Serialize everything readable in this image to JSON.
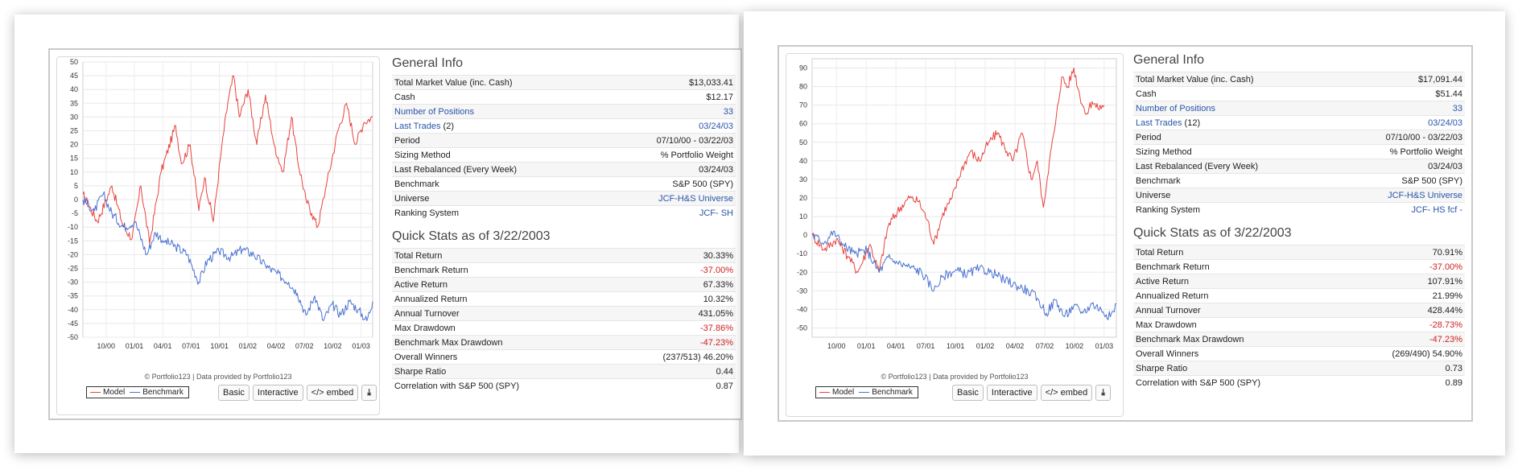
{
  "colors": {
    "model": "#e8413c",
    "benchmark": "#4a72d1",
    "link": "#2a55a8",
    "negative": "#cc1f1f"
  },
  "screens": [
    {
      "legend": {
        "model": "Model",
        "benchmark": "Benchmark"
      },
      "credit": "© Portfolio123 | Data provided by Portfolio123",
      "buttons": {
        "basic": "Basic",
        "interactive": "Interactive",
        "embed": "</> embed",
        "download_icon": "download-icon"
      },
      "general_info": {
        "title": "General Info",
        "rows": [
          {
            "label": "Total Market Value (inc. Cash)",
            "value": "$13,033.41"
          },
          {
            "label": "Cash",
            "value": "$12.17"
          },
          {
            "label": "Number of Positions",
            "value": "33",
            "link": true
          },
          {
            "label": "Last Trades",
            "label_suffix": " (2)",
            "value": "03/24/03",
            "link": true
          },
          {
            "label": "Period",
            "value": "07/10/00 - 03/22/03"
          },
          {
            "label": "Sizing Method",
            "value": "% Portfolio Weight"
          },
          {
            "label": "Last Rebalanced (Every Week)",
            "value": "03/24/03"
          },
          {
            "label": "Benchmark",
            "value": "S&P 500 (SPY)"
          },
          {
            "label": "Universe",
            "value": "JCF-H&S Universe",
            "value_link": true
          },
          {
            "label": "Ranking System",
            "value": "JCF- SH",
            "value_link": true
          }
        ]
      },
      "quick_stats": {
        "title": "Quick Stats as of 3/22/2003",
        "rows": [
          {
            "label": "Total Return",
            "value": "30.33%"
          },
          {
            "label": "Benchmark Return",
            "value": "-37.00%",
            "negative": true
          },
          {
            "label": "Active Return",
            "value": "67.33%"
          },
          {
            "label": "Annualized Return",
            "value": "10.32%"
          },
          {
            "label": "Annual Turnover",
            "value": "431.05%"
          },
          {
            "label": "Max Drawdown",
            "value": "-37.86%",
            "negative": true
          },
          {
            "label": "Benchmark Max Drawdown",
            "value": "-47.23%",
            "negative": true
          },
          {
            "label": "Overall Winners",
            "value": "(237/513) 46.20%"
          },
          {
            "label": "Sharpe Ratio",
            "value": "0.44"
          },
          {
            "label": "Correlation with S&P 500 (SPY)",
            "value": "0.87"
          }
        ]
      },
      "chart_data": {
        "type": "line",
        "ylim": [
          -50,
          50
        ],
        "yticks": [
          50,
          45,
          40,
          35,
          30,
          25,
          20,
          15,
          10,
          5,
          0,
          -5,
          -10,
          -15,
          -20,
          -25,
          -30,
          -35,
          -40,
          -45,
          -50
        ],
        "xticks": [
          "10/00",
          "01/01",
          "04/01",
          "07/01",
          "10/01",
          "01/02",
          "04/02",
          "07/02",
          "10/02",
          "01/03"
        ],
        "x_range": [
          "07/10/00",
          "03/22/03"
        ],
        "grid": true,
        "series": [
          {
            "name": "Model",
            "points": [
              [
                0,
                2
              ],
              [
                5,
                -8
              ],
              [
                10,
                5
              ],
              [
                14,
                -10
              ],
              [
                17,
                -14
              ],
              [
                20,
                5
              ],
              [
                23,
                -16
              ],
              [
                27,
                10
              ],
              [
                32,
                27
              ],
              [
                34,
                13
              ],
              [
                37,
                20
              ],
              [
                40,
                -4
              ],
              [
                42,
                8
              ],
              [
                45,
                -8
              ],
              [
                48,
                20
              ],
              [
                50,
                35
              ],
              [
                52,
                45
              ],
              [
                54,
                30
              ],
              [
                57,
                40
              ],
              [
                60,
                20
              ],
              [
                63,
                38
              ],
              [
                66,
                20
              ],
              [
                69,
                10
              ],
              [
                72,
                30
              ],
              [
                74,
                15
              ],
              [
                77,
                0
              ],
              [
                79,
                -5
              ],
              [
                81,
                -10
              ],
              [
                84,
                5
              ],
              [
                88,
                25
              ],
              [
                91,
                35
              ],
              [
                94,
                20
              ],
              [
                97,
                28
              ],
              [
                100,
                30
              ]
            ]
          },
          {
            "name": "Benchmark",
            "points": [
              [
                0,
                0
              ],
              [
                4,
                -4
              ],
              [
                7,
                2
              ],
              [
                10,
                -5
              ],
              [
                14,
                -10
              ],
              [
                18,
                -8
              ],
              [
                22,
                -20
              ],
              [
                25,
                -12
              ],
              [
                28,
                -15
              ],
              [
                32,
                -17
              ],
              [
                36,
                -20
              ],
              [
                40,
                -30
              ],
              [
                43,
                -22
              ],
              [
                47,
                -19
              ],
              [
                51,
                -21
              ],
              [
                55,
                -18
              ],
              [
                59,
                -20
              ],
              [
                63,
                -24
              ],
              [
                67,
                -27
              ],
              [
                71,
                -30
              ],
              [
                74,
                -34
              ],
              [
                77,
                -42
              ],
              [
                80,
                -35
              ],
              [
                83,
                -44
              ],
              [
                86,
                -38
              ],
              [
                89,
                -42
              ],
              [
                92,
                -37
              ],
              [
                95,
                -40
              ],
              [
                98,
                -44
              ],
              [
                100,
                -37
              ]
            ]
          }
        ]
      }
    },
    {
      "legend": {
        "model": "Model",
        "benchmark": "Benchmark"
      },
      "credit": "© Portfolio123 | Data provided by Portfolio123",
      "buttons": {
        "basic": "Basic",
        "interactive": "Interactive",
        "embed": "</> embed",
        "download_icon": "download-icon"
      },
      "general_info": {
        "title": "General Info",
        "rows": [
          {
            "label": "Total Market Value (inc. Cash)",
            "value": "$17,091.44"
          },
          {
            "label": "Cash",
            "value": "$51.44"
          },
          {
            "label": "Number of Positions",
            "value": "33",
            "link": true
          },
          {
            "label": "Last Trades",
            "label_suffix": " (12)",
            "value": "03/24/03",
            "link": true
          },
          {
            "label": "Period",
            "value": "07/10/00 - 03/22/03"
          },
          {
            "label": "Sizing Method",
            "value": "% Portfolio Weight"
          },
          {
            "label": "Last Rebalanced (Every Week)",
            "value": "03/24/03"
          },
          {
            "label": "Benchmark",
            "value": "S&P 500 (SPY)"
          },
          {
            "label": "Universe",
            "value": "JCF-H&S Universe",
            "value_link": true
          },
          {
            "label": "Ranking System",
            "value": "JCF- HS fcf -",
            "value_link": true
          }
        ]
      },
      "quick_stats": {
        "title": "Quick Stats as of 3/22/2003",
        "rows": [
          {
            "label": "Total Return",
            "value": "70.91%"
          },
          {
            "label": "Benchmark Return",
            "value": "-37.00%",
            "negative": true
          },
          {
            "label": "Active Return",
            "value": "107.91%"
          },
          {
            "label": "Annualized Return",
            "value": "21.99%"
          },
          {
            "label": "Annual Turnover",
            "value": "428.44%"
          },
          {
            "label": "Max Drawdown",
            "value": "-28.73%",
            "negative": true
          },
          {
            "label": "Benchmark Max Drawdown",
            "value": "-47.23%",
            "negative": true
          },
          {
            "label": "Overall Winners",
            "value": "(269/490) 54.90%"
          },
          {
            "label": "Sharpe Ratio",
            "value": "0.73"
          },
          {
            "label": "Correlation with S&P 500 (SPY)",
            "value": "0.89"
          }
        ]
      },
      "chart_data": {
        "type": "line",
        "ylim": [
          -55,
          95
        ],
        "yticks": [
          90,
          80,
          70,
          60,
          50,
          40,
          30,
          20,
          10,
          0,
          -10,
          -20,
          -30,
          -40,
          -50
        ],
        "xticks": [
          "10/00",
          "01/01",
          "04/01",
          "07/01",
          "10/01",
          "01/02",
          "04/02",
          "07/02",
          "10/02",
          "01/03"
        ],
        "x_range": [
          "07/10/00",
          "03/22/03"
        ],
        "grid": true,
        "series": [
          {
            "name": "Model",
            "points": [
              [
                0,
                0
              ],
              [
                4,
                -8
              ],
              [
                8,
                -2
              ],
              [
                12,
                -12
              ],
              [
                15,
                -20
              ],
              [
                19,
                -5
              ],
              [
                22,
                -20
              ],
              [
                25,
                5
              ],
              [
                29,
                15
              ],
              [
                32,
                20
              ],
              [
                35,
                18
              ],
              [
                38,
                8
              ],
              [
                40,
                -5
              ],
              [
                43,
                12
              ],
              [
                46,
                20
              ],
              [
                49,
                35
              ],
              [
                52,
                45
              ],
              [
                55,
                40
              ],
              [
                58,
                50
              ],
              [
                61,
                55
              ],
              [
                64,
                45
              ],
              [
                66,
                40
              ],
              [
                69,
                55
              ],
              [
                72,
                30
              ],
              [
                74,
                40
              ],
              [
                76,
                15
              ],
              [
                78,
                40
              ],
              [
                80,
                60
              ],
              [
                82,
                85
              ],
              [
                84,
                80
              ],
              [
                86,
                90
              ],
              [
                88,
                75
              ],
              [
                90,
                65
              ],
              [
                92,
                72
              ],
              [
                94,
                68
              ],
              [
                96,
                70
              ]
            ]
          },
          {
            "name": "Benchmark",
            "points": [
              [
                0,
                0
              ],
              [
                4,
                -4
              ],
              [
                7,
                2
              ],
              [
                10,
                -5
              ],
              [
                14,
                -10
              ],
              [
                18,
                -8
              ],
              [
                22,
                -20
              ],
              [
                25,
                -12
              ],
              [
                28,
                -15
              ],
              [
                32,
                -17
              ],
              [
                36,
                -20
              ],
              [
                40,
                -30
              ],
              [
                43,
                -22
              ],
              [
                47,
                -19
              ],
              [
                51,
                -21
              ],
              [
                55,
                -18
              ],
              [
                59,
                -20
              ],
              [
                63,
                -24
              ],
              [
                67,
                -27
              ],
              [
                71,
                -30
              ],
              [
                74,
                -34
              ],
              [
                77,
                -42
              ],
              [
                80,
                -35
              ],
              [
                83,
                -44
              ],
              [
                86,
                -38
              ],
              [
                89,
                -42
              ],
              [
                92,
                -37
              ],
              [
                95,
                -40
              ],
              [
                98,
                -44
              ],
              [
                100,
                -37
              ]
            ]
          }
        ]
      }
    }
  ]
}
